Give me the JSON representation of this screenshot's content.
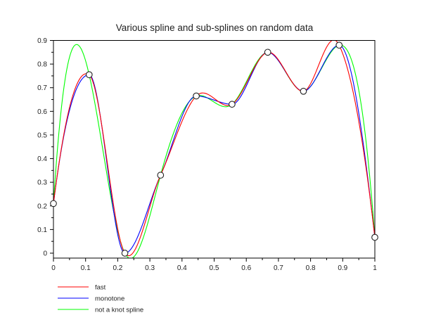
{
  "chart_data": {
    "type": "line",
    "title": "Various spline and sub-splines on random data",
    "xlabel": "",
    "ylabel": "",
    "xlim": [
      0,
      1
    ],
    "ylim": [
      -0.02,
      0.9
    ],
    "xticks": [
      "0",
      "0.1",
      "0.2",
      "0.3",
      "0.4",
      "0.5",
      "0.6",
      "0.7",
      "0.8",
      "0.9",
      "1"
    ],
    "yticks": [
      "0",
      "0.1",
      "0.2",
      "0.3",
      "0.4",
      "0.5",
      "0.6",
      "0.7",
      "0.8",
      "0.9"
    ],
    "grid": false,
    "legend_placement": "bottom-left",
    "points": {
      "x": [
        0,
        0.1111,
        0.2222,
        0.3333,
        0.4444,
        0.5556,
        0.6667,
        0.7778,
        0.8889,
        1
      ],
      "y": [
        0.21,
        0.755,
        0.0,
        0.33,
        0.665,
        0.63,
        0.85,
        0.685,
        0.88,
        0.067
      ]
    },
    "series": [
      {
        "name": "fast",
        "color": "#ff0000",
        "method": "fast"
      },
      {
        "name": "monotone",
        "color": "#0000ff",
        "method": "monotone"
      },
      {
        "name": "not a knot spline",
        "color": "#00ff00",
        "method": "not_a_knot"
      }
    ]
  }
}
